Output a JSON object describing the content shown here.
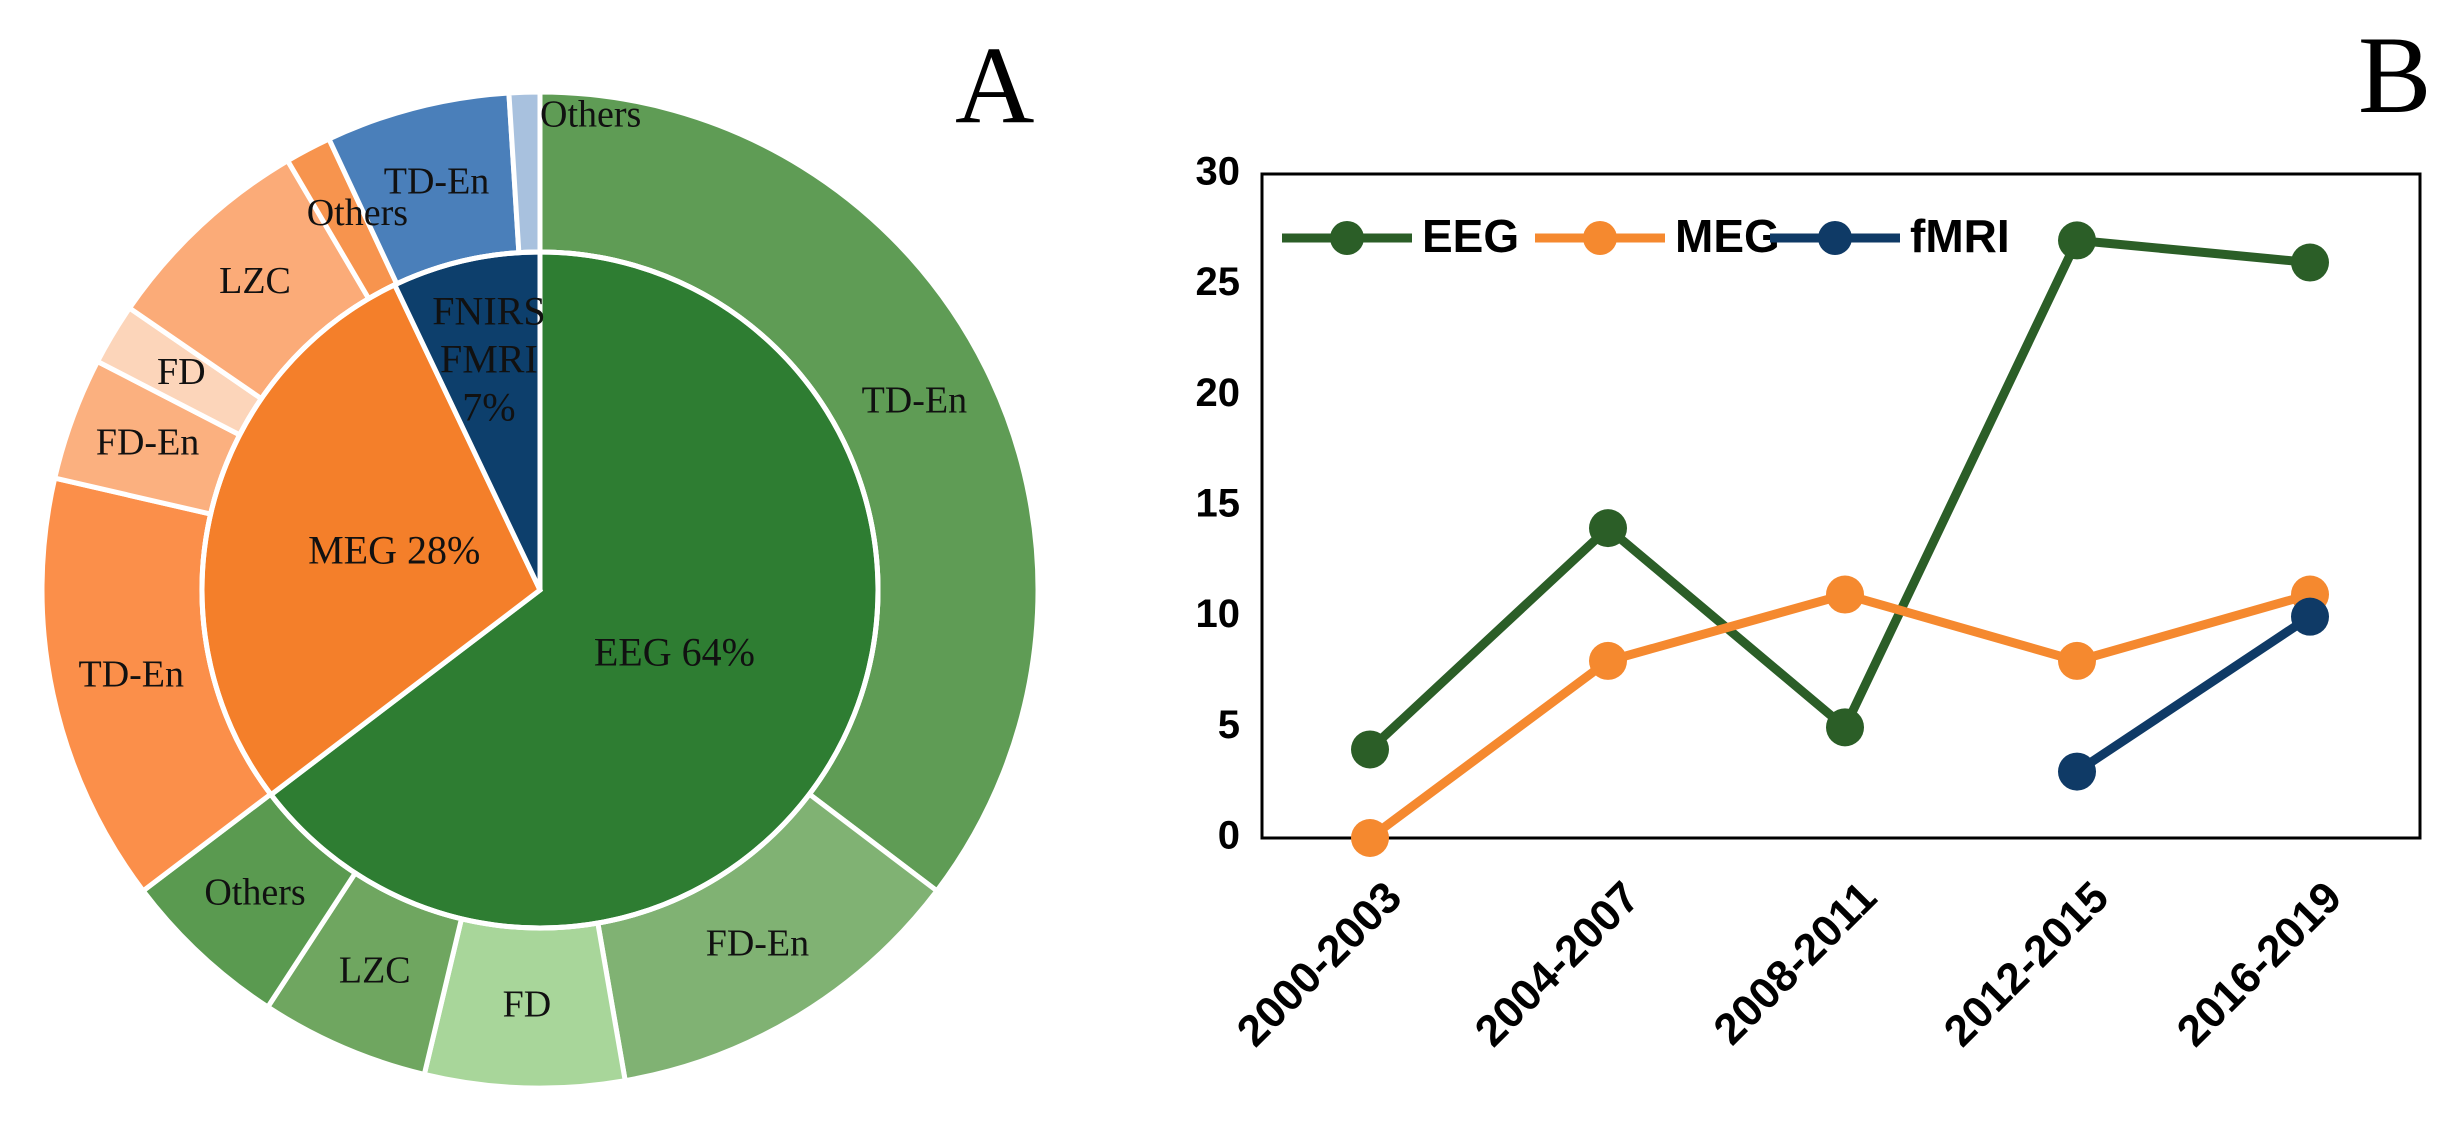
{
  "panels": {
    "a_letter": "A",
    "b_letter": "B"
  },
  "chart_data": [
    {
      "type": "pie",
      "subtype": "nested-donut",
      "title": "",
      "inner": [
        {
          "label": "EEG 64%",
          "value": 64,
          "color": "#2e7d32"
        },
        {
          "label": "MEG 28%",
          "value": 28,
          "color": "#f47f2a"
        },
        {
          "label": "FNIRS\nFMRI\n7%",
          "value": 7,
          "color": "#0d3f6c"
        }
      ],
      "outer": [
        {
          "label": "TD-En",
          "value": 35.5,
          "color": "#5f9c55",
          "group": "EEG"
        },
        {
          "label": "FD-En",
          "value": 12,
          "color": "#80b273",
          "group": "EEG"
        },
        {
          "label": "FD",
          "value": 6.5,
          "color": "#a8d69a",
          "group": "EEG"
        },
        {
          "label": "LZC",
          "value": 5.5,
          "color": "#6fa660",
          "group": "EEG"
        },
        {
          "label": "Others",
          "value": 5.5,
          "color": "#5a9a50",
          "group": "EEG"
        },
        {
          "label": "TD-En",
          "value": 14,
          "color": "#fb8f4a",
          "group": "MEG"
        },
        {
          "label": "FD-En",
          "value": 4,
          "color": "#fbb07f",
          "group": "MEG"
        },
        {
          "label": "FD",
          "value": 2,
          "color": "#fcd5ba",
          "group": "MEG"
        },
        {
          "label": "LZC",
          "value": 7,
          "color": "#fbab78",
          "group": "MEG"
        },
        {
          "label": "Others",
          "value": 1.5,
          "color": "#f7944e",
          "group": "MEG"
        },
        {
          "label": "TD-En",
          "value": 6,
          "color": "#4a7fba",
          "group": "FNIRS/FMRI"
        },
        {
          "label": "Others",
          "value": 1,
          "color": "#a8c1de",
          "group": "FNIRS/FMRI"
        }
      ]
    },
    {
      "type": "line",
      "title": "",
      "xlabel": "",
      "ylabel": "",
      "categories": [
        "2000-2003",
        "2004-2007",
        "2008-2011",
        "2012-2015",
        "2016-2019"
      ],
      "ylim": [
        0,
        30
      ],
      "yticks": [
        "0",
        "5",
        "10",
        "15",
        "20",
        "25",
        "30"
      ],
      "legend_position": "top-left",
      "grid": false,
      "series": [
        {
          "name": "EEG",
          "color": "#2b5e27",
          "values": [
            4,
            14,
            5,
            27,
            26
          ]
        },
        {
          "name": "MEG",
          "color": "#f5892f",
          "values": [
            0,
            8,
            11,
            8,
            11
          ]
        },
        {
          "name": "fMRI",
          "color": "#0f3a66",
          "values": [
            null,
            null,
            null,
            3,
            10
          ]
        }
      ]
    }
  ]
}
